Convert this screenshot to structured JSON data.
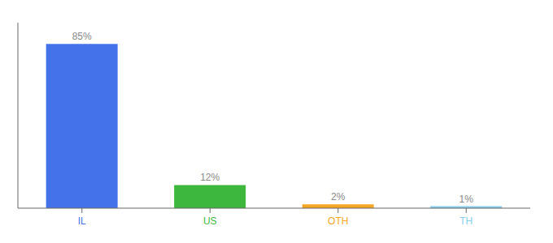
{
  "chart_data": {
    "type": "bar",
    "categories": [
      "IL",
      "US",
      "OTH",
      "TH"
    ],
    "values": [
      85,
      12,
      2,
      1
    ],
    "value_labels": [
      "85%",
      "12%",
      "2%",
      "1%"
    ],
    "colors": [
      "#4472e8",
      "#3db83d",
      "#f5a623",
      "#87ceeb"
    ],
    "ylim": [
      0,
      96
    ],
    "data_labels": true,
    "tick_labels": "x",
    "grid": false
  }
}
